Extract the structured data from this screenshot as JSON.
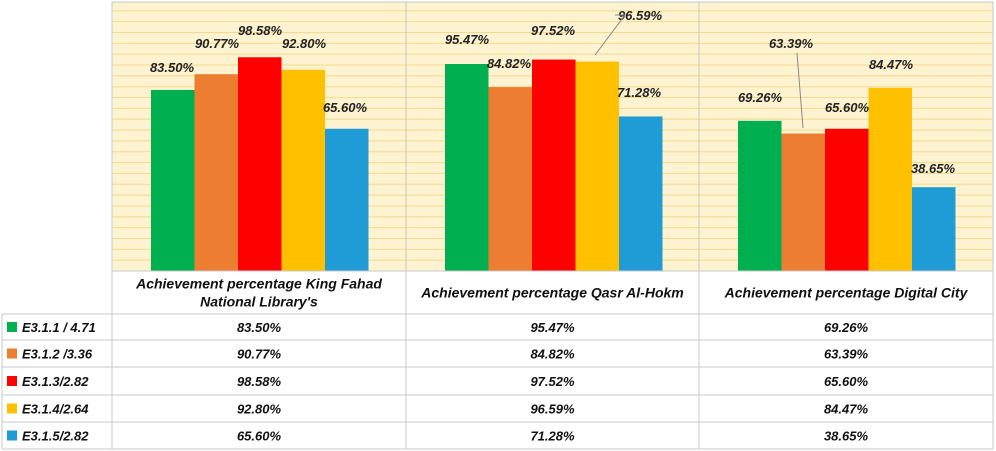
{
  "chart_data": {
    "type": "bar",
    "categories": [
      "Achievement percentage King Fahad National Library's",
      "Achievement percentage  Qasr Al-Hokm",
      "Achievement percentage Digital City"
    ],
    "category_lines": [
      [
        "Achievement percentage King Fahad",
        "National Library's"
      ],
      [
        "Achievement percentage  Qasr Al-Hokm"
      ],
      [
        "Achievement percentage Digital City"
      ]
    ],
    "series": [
      {
        "name": "E3.1.1 / 4.71",
        "color": "#00b050",
        "values": [
          83.5,
          95.47,
          69.26
        ],
        "labels": [
          "83.50%",
          "95.47%",
          "69.26%"
        ]
      },
      {
        "name": "E3.1.2 /3.36",
        "color": "#ed7d31",
        "values": [
          90.77,
          84.82,
          63.39
        ],
        "labels": [
          "90.77%",
          "84.82%",
          "63.39%"
        ]
      },
      {
        "name": "E3.1.3/2.82",
        "color": "#ff0000",
        "values": [
          98.58,
          97.52,
          65.6
        ],
        "labels": [
          "98.58%",
          "97.52%",
          "65.60%"
        ]
      },
      {
        "name": "E3.1.4/2.64",
        "color": "#ffc000",
        "values": [
          92.8,
          96.59,
          84.47
        ],
        "labels": [
          "92.80%",
          "96.59%",
          "84.47%"
        ]
      },
      {
        "name": "E3.1.5/2.82",
        "color": "#1f9bd6",
        "values": [
          65.6,
          71.28,
          38.65
        ],
        "labels": [
          "65.60%",
          "71.28%",
          "38.65%"
        ]
      }
    ],
    "ylim": [
      0,
      100
    ],
    "grid": true,
    "legend": "data-table",
    "plot_background": "#fdf3d0",
    "gridline_color": "#f6d98c"
  }
}
